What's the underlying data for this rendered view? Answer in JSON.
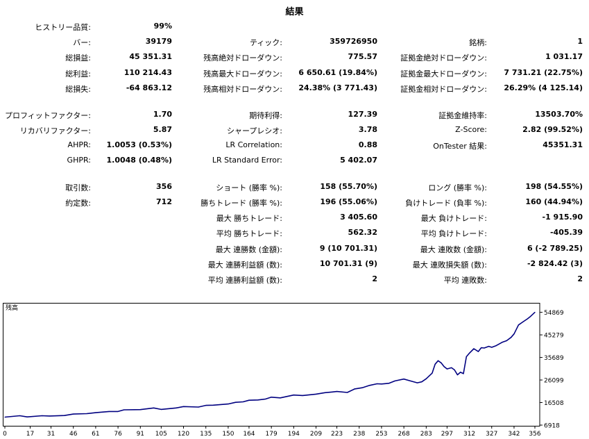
{
  "title": "結果",
  "stats": [
    {
      "id": "history_quality",
      "col": 1,
      "row": 0,
      "label": "ヒストリー品質:",
      "value": "99%"
    },
    {
      "id": "bars",
      "col": 1,
      "row": 1,
      "label": "バー:",
      "value": "39179"
    },
    {
      "id": "ticks",
      "col": 2,
      "row": 1,
      "label": "ティック:",
      "value": "359726950"
    },
    {
      "id": "symbols",
      "col": 3,
      "row": 1,
      "label": "銘柄:",
      "value": "1"
    },
    {
      "id": "total_net_profit",
      "col": 1,
      "row": 2,
      "label": "総損益:",
      "value": "45 351.31"
    },
    {
      "id": "balance_dd_absolute",
      "col": 2,
      "row": 2,
      "label": "残高絶対ドローダウン:",
      "value": "775.57"
    },
    {
      "id": "equity_dd_absolute",
      "col": 3,
      "row": 2,
      "label": "証拠金絶対ドローダウン:",
      "value": "1 031.17"
    },
    {
      "id": "gross_profit",
      "col": 1,
      "row": 3,
      "label": "総利益:",
      "value": "110 214.43"
    },
    {
      "id": "balance_dd_max",
      "col": 2,
      "row": 3,
      "label": "残高最大ドローダウン:",
      "value": "6 650.61 (19.84%)"
    },
    {
      "id": "equity_dd_max",
      "col": 3,
      "row": 3,
      "label": "証拠金最大ドローダウン:",
      "value": "7 731.21 (22.75%)"
    },
    {
      "id": "gross_loss",
      "col": 1,
      "row": 4,
      "label": "総損失:",
      "value": "-64 863.12"
    },
    {
      "id": "balance_dd_relative",
      "col": 2,
      "row": 4,
      "label": "残高相対ドローダウン:",
      "value": "24.38% (3 771.43)"
    },
    {
      "id": "equity_dd_relative",
      "col": 3,
      "row": 4,
      "label": "証拠金相対ドローダウン:",
      "value": "26.29% (4 125.14)"
    },
    {
      "id": "profit_factor",
      "col": 1,
      "row": 5.7,
      "label": "プロフィットファクター:",
      "value": "1.70"
    },
    {
      "id": "expected_payoff",
      "col": 2,
      "row": 5.7,
      "label": "期待利得:",
      "value": "127.39"
    },
    {
      "id": "margin_level",
      "col": 3,
      "row": 5.7,
      "label": "証拠金維持率:",
      "value": "13503.70%"
    },
    {
      "id": "recovery_factor",
      "col": 1,
      "row": 6.7,
      "label": "リカバリファクター:",
      "value": "5.87"
    },
    {
      "id": "sharpe_ratio",
      "col": 2,
      "row": 6.7,
      "label": "シャープレシオ:",
      "value": "3.78"
    },
    {
      "id": "z_score",
      "col": 3,
      "row": 6.7,
      "label": "Z-Score:",
      "value": "2.82 (99.52%)"
    },
    {
      "id": "ahpr",
      "col": 1,
      "row": 7.7,
      "label": "AHPR:",
      "value": "1.0053 (0.53%)"
    },
    {
      "id": "lr_correlation",
      "col": 2,
      "row": 7.7,
      "label": "LR Correlation:",
      "value": "0.88"
    },
    {
      "id": "ontester_result",
      "col": 3,
      "row": 7.7,
      "label": "OnTester 結果:",
      "value": "45351.31"
    },
    {
      "id": "ghpr",
      "col": 1,
      "row": 8.7,
      "label": "GHPR:",
      "value": "1.0048 (0.48%)"
    },
    {
      "id": "lr_standard_error",
      "col": 2,
      "row": 8.7,
      "label": "LR Standard Error:",
      "value": "5 402.07"
    },
    {
      "id": "total_trades",
      "col": 1,
      "row": 10.4,
      "label": "取引数:",
      "value": "356"
    },
    {
      "id": "short_trades",
      "col": 2,
      "row": 10.4,
      "label": "ショート (勝率 %):",
      "value": "158 (55.70%)"
    },
    {
      "id": "long_trades",
      "col": 3,
      "row": 10.4,
      "label": "ロング (勝率 %):",
      "value": "198 (54.55%)"
    },
    {
      "id": "total_deals",
      "col": 1,
      "row": 11.4,
      "label": "約定数:",
      "value": "712"
    },
    {
      "id": "profit_trades",
      "col": 2,
      "row": 11.4,
      "label": "勝ちトレード (勝率 %):",
      "value": "196 (55.06%)"
    },
    {
      "id": "loss_trades",
      "col": 3,
      "row": 11.4,
      "label": "負けトレード (負率 %):",
      "value": "160 (44.94%)"
    },
    {
      "id": "largest_profit_trade",
      "col": 2,
      "row": 12.4,
      "label": "最大 勝ちトレード:",
      "value": "3 405.60"
    },
    {
      "id": "largest_loss_trade",
      "col": 3,
      "row": 12.4,
      "label": "最大 負けトレード:",
      "value": "-1 915.90"
    },
    {
      "id": "average_profit_trade",
      "col": 2,
      "row": 13.4,
      "label": "平均 勝ちトレード:",
      "value": "562.32"
    },
    {
      "id": "average_loss_trade",
      "col": 3,
      "row": 13.4,
      "label": "平均 負けトレード:",
      "value": "-405.39"
    },
    {
      "id": "max_consecutive_wins",
      "col": 2,
      "row": 14.4,
      "label": "最大 連勝数 (金額):",
      "value": "9 (10 701.31)"
    },
    {
      "id": "max_consecutive_losses",
      "col": 3,
      "row": 14.4,
      "label": "最大 連敗数 (金額):",
      "value": "6 (-2 789.25)"
    },
    {
      "id": "max_consecutive_profit",
      "col": 2,
      "row": 15.4,
      "label": "最大 連勝利益額 (数):",
      "value": "10 701.31 (9)"
    },
    {
      "id": "max_consecutive_loss",
      "col": 3,
      "row": 15.4,
      "label": "最大 連敗損失額 (数):",
      "value": "-2 824.42 (3)"
    },
    {
      "id": "average_consecutive_wins",
      "col": 2,
      "row": 16.4,
      "label": "平均 連勝利益額 (数):",
      "value": "2"
    },
    {
      "id": "average_consecutive_losses",
      "col": 3,
      "row": 16.4,
      "label": "平均 連敗数:",
      "value": "2"
    }
  ],
  "chart_data": {
    "type": "line",
    "title": "残高",
    "xlabel": "",
    "ylabel": "",
    "xlim": [
      0,
      356
    ],
    "ylim": [
      6918,
      58000
    ],
    "x_ticks": [
      "0",
      "17",
      "31",
      "46",
      "61",
      "76",
      "91",
      "105",
      "120",
      "135",
      "150",
      "164",
      "179",
      "194",
      "209",
      "223",
      "238",
      "253",
      "268",
      "283",
      "297",
      "312",
      "327",
      "342",
      "356"
    ],
    "y_ticks": [
      "54869",
      "45279",
      "35689",
      "26099",
      "16508",
      "6918"
    ],
    "grid": false,
    "line_color": "#000080",
    "series": [
      {
        "x": [
          0,
          10,
          15,
          25,
          30,
          40,
          46,
          55,
          61,
          70,
          76,
          80,
          91,
          100,
          105,
          115,
          120,
          130,
          135,
          140,
          150,
          155,
          160,
          164,
          170,
          175,
          179,
          185,
          194,
          200,
          209,
          215,
          220,
          223,
          230,
          235,
          240,
          245,
          250,
          253,
          258,
          262,
          268,
          272,
          277,
          280,
          283,
          287,
          289,
          291,
          293,
          295,
          297,
          300,
          302,
          304,
          306,
          308,
          310,
          312,
          315,
          318,
          320,
          322,
          325,
          327,
          330,
          334,
          337,
          340,
          342,
          345,
          348,
          351,
          353,
          356
        ],
        "y": [
          10300,
          10900,
          10400,
          10900,
          10800,
          11000,
          11600,
          11800,
          12200,
          12700,
          12700,
          13400,
          13500,
          14200,
          13600,
          14200,
          14800,
          14600,
          15300,
          15400,
          15900,
          16600,
          16800,
          17500,
          17600,
          18000,
          18800,
          18500,
          19700,
          19500,
          20100,
          20700,
          21000,
          21200,
          20800,
          22300,
          22800,
          23800,
          24500,
          24400,
          24700,
          25700,
          26500,
          25800,
          24900,
          25300,
          26600,
          29000,
          32800,
          34300,
          33400,
          31800,
          30800,
          31300,
          30400,
          28300,
          29400,
          28800,
          36000,
          37500,
          39400,
          38200,
          39800,
          39700,
          40400,
          40000,
          40700,
          42100,
          42800,
          44200,
          45700,
          49500,
          50800,
          52100,
          53100,
          54869
        ]
      }
    ]
  }
}
